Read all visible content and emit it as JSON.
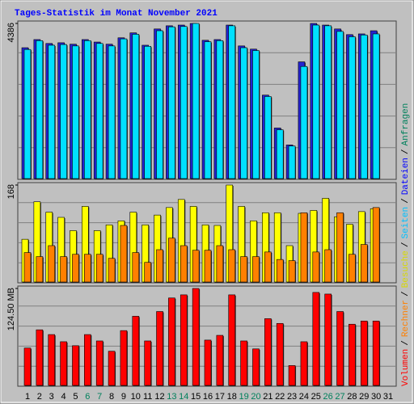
{
  "chart_data": [
    {
      "type": "bar",
      "title": "Tages-Statistik im Monat November 2021",
      "ylim": [
        0,
        4386
      ],
      "yticks": [
        4386
      ],
      "series": [
        {
          "color": "#2424d0",
          "values": [
            3700,
            3930,
            3820,
            3840,
            3800,
            3930,
            3860,
            3800,
            3980,
            4120,
            3770,
            4230,
            4320,
            4340,
            4386,
            3910,
            3930,
            4340,
            3750,
            3660,
            2360,
            1430,
            950,
            3300,
            4386,
            4340,
            4230,
            4070,
            4090,
            4180,
            null
          ]
        },
        {
          "color": "#00e0ff",
          "values": [
            3650,
            3900,
            3770,
            3790,
            3750,
            3900,
            3820,
            3750,
            3950,
            4080,
            3740,
            4180,
            4290,
            4300,
            4386,
            3870,
            3900,
            4320,
            3700,
            3620,
            2320,
            1380,
            920,
            3170,
            4340,
            4320,
            4160,
            4010,
            4060,
            4090,
            null
          ]
        }
      ]
    },
    {
      "type": "bar",
      "ylim": [
        0,
        168
      ],
      "yticks": [
        168
      ],
      "series": [
        {
          "color": "#ffff00",
          "values": [
            74,
            139,
            121,
            112,
            89,
            131,
            89,
            99,
            106,
            121,
            99,
            116,
            129,
            143,
            131,
            99,
            98,
            168,
            131,
            106,
            120,
            120,
            63,
            119,
            124,
            145,
            113,
            100,
            122,
            127,
            null
          ]
        },
        {
          "color": "#ff8000",
          "values": [
            51,
            44,
            63,
            44,
            48,
            48,
            48,
            41,
            98,
            51,
            34,
            56,
            76,
            63,
            55,
            55,
            63,
            56,
            44,
            44,
            52,
            39,
            37,
            120,
            52,
            56,
            120,
            48,
            65,
            129,
            null
          ]
        }
      ]
    },
    {
      "type": "bar",
      "ylim": [
        0,
        124.5
      ],
      "yticks": [
        {
          "value": 124.5,
          "label": "124.50 MB"
        }
      ],
      "series": [
        {
          "color": "#ff0000",
          "values": [
            48,
            71.4,
            65.3,
            56.1,
            51,
            65.3,
            57.1,
            43.9,
            70.4,
            88.8,
            57.1,
            94.9,
            112.3,
            116.3,
            124.5,
            58.2,
            64.3,
            116.3,
            57.1,
            46.9,
            85.7,
            79.6,
            25.5,
            56.1,
            119.4,
            117.3,
            94.9,
            78.6,
            82.7,
            82.7,
            null
          ]
        }
      ],
      "categories": [
        "1",
        "2",
        "3",
        "4",
        "5",
        "6",
        "7",
        "8",
        "9",
        "10",
        "11",
        "12",
        "13",
        "14",
        "15",
        "16",
        "17",
        "18",
        "19",
        "20",
        "21",
        "22",
        "23",
        "24",
        "25",
        "26",
        "27",
        "28",
        "29",
        "30",
        "31"
      ],
      "category_colors": [
        "#000000",
        "#000000",
        "#000000",
        "#000000",
        "#000000",
        "#00805c",
        "#00805c",
        "#000000",
        "#000000",
        "#000000",
        "#000000",
        "#000000",
        "#00805c",
        "#00805c",
        "#000000",
        "#000000",
        "#000000",
        "#000000",
        "#00805c",
        "#00805c",
        "#000000",
        "#000000",
        "#000000",
        "#000000",
        "#000000",
        "#00805c",
        "#00805c",
        "#000000",
        "#000000",
        "#000000",
        "#000000"
      ]
    }
  ],
  "side_legend": {
    "separator": "/",
    "items": [
      {
        "text": "Volumen",
        "color": "#ff0000"
      },
      {
        "text": "Rechner",
        "color": "#ff8000"
      },
      {
        "text": "Besuche",
        "color": "#d8d800"
      },
      {
        "text": "Seiten",
        "color": "#00c0ff"
      },
      {
        "text": "Dateien",
        "color": "#0000ff"
      },
      {
        "text": "Anfragen",
        "color": "#00805c"
      }
    ]
  }
}
